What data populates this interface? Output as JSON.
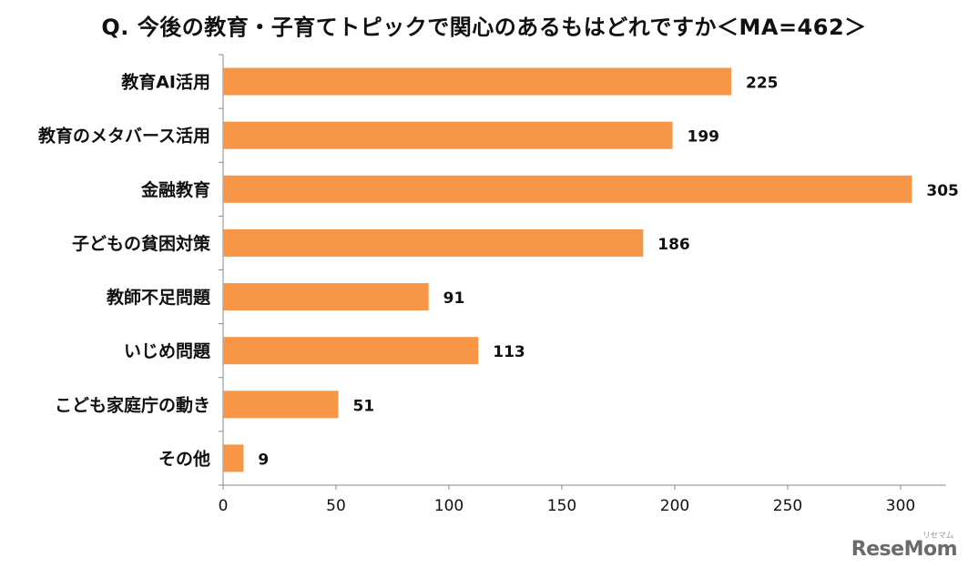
{
  "chart_data": {
    "type": "bar",
    "orientation": "horizontal",
    "title": "Q. 今後の教育・子育てトピックで関心のあるもはどれですか＜MA=462＞",
    "categories": [
      "教育AI活用",
      "教育のメタバース活用",
      "金融教育",
      "子どもの貧困対策",
      "教師不足問題",
      "いじめ問題",
      "こども家庭庁の動き",
      "その他"
    ],
    "values": [
      225,
      199,
      305,
      186,
      91,
      113,
      51,
      9
    ],
    "xlim": [
      0,
      320
    ],
    "xticks": [
      0,
      50,
      100,
      150,
      200,
      250,
      300
    ],
    "bar_color": "#F79646",
    "grid": false
  },
  "watermark": {
    "text": "ReseMom",
    "sub": "リセマム"
  }
}
